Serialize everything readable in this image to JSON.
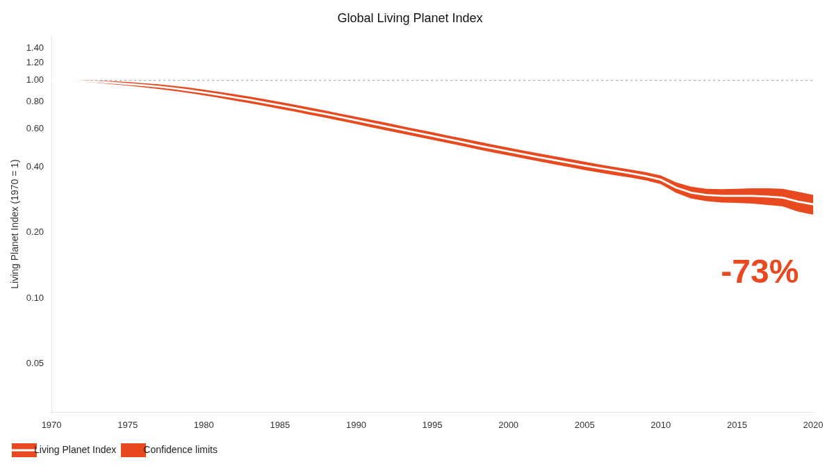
{
  "chart_data": {
    "type": "line",
    "title": "Global Living Planet Index",
    "y_label": "Living Planet Index (1970 = 1)",
    "log": "y",
    "grid": false,
    "legend": "lower left",
    "x": [
      1970,
      1971,
      1972,
      1973,
      1974,
      1975,
      1976,
      1977,
      1978,
      1979,
      1980,
      1981,
      1982,
      1983,
      1984,
      1985,
      1986,
      1987,
      1988,
      1989,
      1990,
      1991,
      1992,
      1993,
      1994,
      1995,
      1996,
      1997,
      1998,
      1999,
      2000,
      2001,
      2002,
      2003,
      2004,
      2005,
      2006,
      2007,
      2008,
      2009,
      2010,
      2011,
      2012,
      2013,
      2014,
      2015,
      2016,
      2017,
      2018,
      2019,
      2020
    ],
    "series": [
      {
        "name": "Living Planet Index",
        "type": "line",
        "color": "#FFFFFF",
        "values": [
          1.0,
          0.998,
          0.993,
          0.985,
          0.975,
          0.963,
          0.95,
          0.936,
          0.919,
          0.9,
          0.879,
          0.858,
          0.836,
          0.814,
          0.791,
          0.768,
          0.745,
          0.722,
          0.7,
          0.678,
          0.656,
          0.635,
          0.614,
          0.594,
          0.575,
          0.556,
          0.538,
          0.52,
          0.503,
          0.487,
          0.472,
          0.458,
          0.444,
          0.431,
          0.418,
          0.406,
          0.395,
          0.385,
          0.375,
          0.364,
          0.35,
          0.322,
          0.305,
          0.298,
          0.295,
          0.295,
          0.295,
          0.293,
          0.29,
          0.278,
          0.27
        ]
      },
      {
        "name": "Confidence limits",
        "type": "area",
        "color": "#E8491E",
        "upper": [
          1.0,
          1.002,
          1.002,
          0.998,
          0.991,
          0.982,
          0.971,
          0.959,
          0.944,
          0.926,
          0.906,
          0.886,
          0.864,
          0.842,
          0.819,
          0.796,
          0.773,
          0.749,
          0.726,
          0.703,
          0.681,
          0.659,
          0.638,
          0.617,
          0.597,
          0.578,
          0.559,
          0.541,
          0.524,
          0.507,
          0.491,
          0.476,
          0.462,
          0.449,
          0.436,
          0.423,
          0.411,
          0.4,
          0.39,
          0.379,
          0.366,
          0.34,
          0.325,
          0.318,
          0.317,
          0.318,
          0.32,
          0.32,
          0.318,
          0.308,
          0.298
        ],
        "lower": [
          1.0,
          0.994,
          0.985,
          0.973,
          0.96,
          0.945,
          0.93,
          0.913,
          0.895,
          0.875,
          0.853,
          0.831,
          0.808,
          0.786,
          0.763,
          0.74,
          0.718,
          0.695,
          0.673,
          0.651,
          0.63,
          0.609,
          0.589,
          0.57,
          0.551,
          0.533,
          0.516,
          0.499,
          0.482,
          0.467,
          0.452,
          0.438,
          0.425,
          0.412,
          0.4,
          0.388,
          0.377,
          0.367,
          0.358,
          0.348,
          0.334,
          0.305,
          0.287,
          0.279,
          0.275,
          0.274,
          0.272,
          0.268,
          0.264,
          0.25,
          0.242
        ]
      }
    ],
    "reference_lines": [
      {
        "y": 1.0,
        "color": "#AAAAAA",
        "line_style": "dotted"
      }
    ],
    "annotations": [
      {
        "text": "-73%",
        "x": 2016.5,
        "y": 0.13,
        "color": "#E8491E"
      }
    ],
    "xlim": [
      1970,
      2020
    ],
    "xticks": [
      1970,
      1975,
      1980,
      1985,
      1990,
      1995,
      2000,
      2005,
      2010,
      2015,
      2020
    ],
    "ylim": [
      0.03,
      1.6
    ],
    "yticks": [
      0.05,
      {
        "value": 0.1,
        "label": "0.10"
      },
      {
        "value": 0.2,
        "label": "0.20"
      },
      {
        "value": 0.4,
        "label": "0.40"
      },
      {
        "value": 0.6,
        "label": "0.60"
      },
      {
        "value": 0.8,
        "label": "0.80"
      },
      {
        "value": 1.0,
        "label": "1.00"
      },
      {
        "value": 1.2,
        "label": "1.20"
      },
      {
        "value": 1.4,
        "label": "1.40"
      }
    ]
  }
}
